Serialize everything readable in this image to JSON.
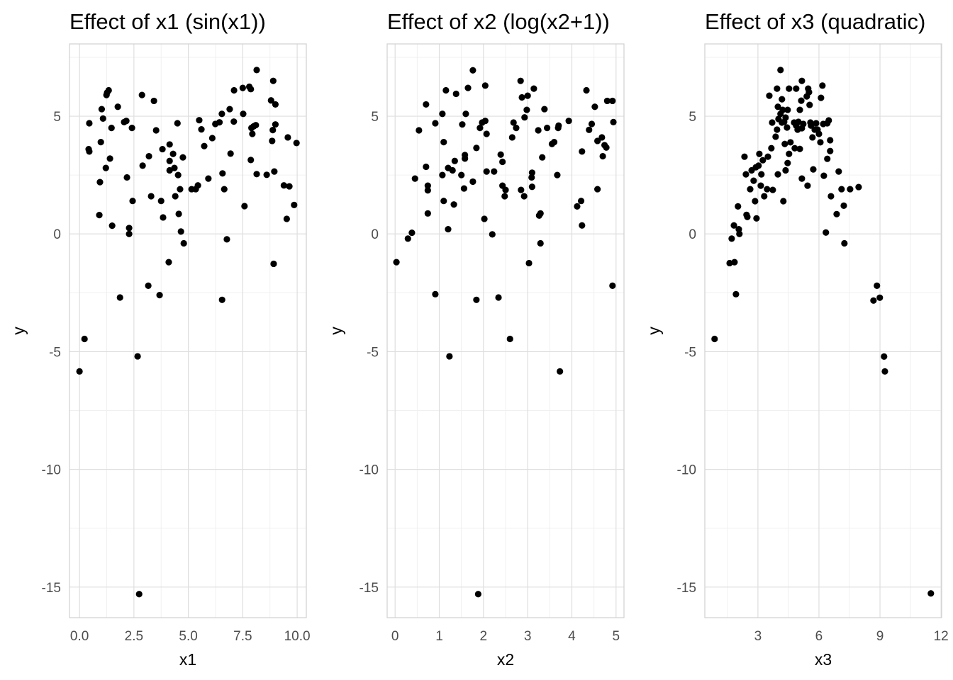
{
  "chart_data": [
    {
      "type": "scatter",
      "title": "Effect of x1 (sin(x1))",
      "xlabel": "x1",
      "ylabel": "y",
      "xlim": [
        -0.46,
        10.42
      ],
      "ylim": [
        -16.3,
        8.07
      ],
      "xticks": [
        0,
        2.5,
        5,
        7.5,
        10
      ],
      "xtick_labels": [
        "0.0",
        "2.5",
        "5.0",
        "7.5",
        "10.0"
      ],
      "yticks": [
        5,
        0,
        -5,
        -10,
        -15
      ],
      "ytick_labels": [
        "5",
        "0",
        "-5",
        "-10",
        "-15"
      ],
      "xminor": [
        1.25,
        3.75,
        6.25,
        8.75
      ],
      "yminor": [
        7.5,
        2.5,
        -2.5,
        -7.5,
        -12.5
      ],
      "grid": true,
      "point_color": "#000000",
      "points": [
        [
          0,
          -5.84
        ],
        [
          0.23,
          -4.46
        ],
        [
          0.45,
          4.7
        ],
        [
          0.42,
          3.6
        ],
        [
          0.45,
          3.5
        ],
        [
          0.91,
          0.8
        ],
        [
          0.94,
          2.2
        ],
        [
          0.98,
          3.9
        ],
        [
          1.02,
          5.3
        ],
        [
          1.08,
          4.9
        ],
        [
          1.21,
          2.8
        ],
        [
          1.24,
          5.9
        ],
        [
          1.27,
          6.0
        ],
        [
          1.34,
          6.1
        ],
        [
          1.4,
          3.2
        ],
        [
          1.47,
          4.5
        ],
        [
          1.5,
          0.35
        ],
        [
          1.76,
          5.4
        ],
        [
          1.86,
          -2.7
        ],
        [
          2.05,
          4.75
        ],
        [
          2.15,
          4.8
        ],
        [
          2.18,
          2.4
        ],
        [
          2.28,
          0.25
        ],
        [
          2.28,
          0
        ],
        [
          2.41,
          4.5
        ],
        [
          2.44,
          1.4
        ],
        [
          2.67,
          -5.2
        ],
        [
          2.74,
          -15.3
        ],
        [
          2.87,
          5.9
        ],
        [
          2.9,
          2.9
        ],
        [
          3.16,
          -2.2
        ],
        [
          3.19,
          3.3
        ],
        [
          3.29,
          1.6
        ],
        [
          3.42,
          5.65
        ],
        [
          3.52,
          4.4
        ],
        [
          3.68,
          -2.6
        ],
        [
          3.75,
          1.4
        ],
        [
          3.81,
          3.6
        ],
        [
          3.84,
          0.7
        ],
        [
          4.1,
          -1.2
        ],
        [
          4.14,
          3.8
        ],
        [
          4.14,
          3.1
        ],
        [
          4.14,
          2.7
        ],
        [
          4.3,
          3.4
        ],
        [
          4.36,
          2.8
        ],
        [
          4.4,
          1.6
        ],
        [
          4.5,
          4.7
        ],
        [
          4.53,
          2.5
        ],
        [
          4.56,
          0.85
        ],
        [
          4.62,
          1.9
        ],
        [
          4.66,
          0.1
        ],
        [
          4.79,
          -0.4
        ],
        [
          4.75,
          3.25
        ],
        [
          5.15,
          1.9
        ],
        [
          5.34,
          1.9
        ],
        [
          5.44,
          2.06
        ],
        [
          5.5,
          4.83
        ],
        [
          5.6,
          4.44
        ],
        [
          5.73,
          3.73
        ],
        [
          5.92,
          2.35
        ],
        [
          6.1,
          4.07
        ],
        [
          6.24,
          4.67
        ],
        [
          6.43,
          4.74
        ],
        [
          6.54,
          5.1
        ],
        [
          6.55,
          -2.8
        ],
        [
          6.57,
          2.57
        ],
        [
          6.65,
          1.9
        ],
        [
          6.77,
          -0.23
        ],
        [
          6.9,
          5.3
        ],
        [
          6.94,
          3.41
        ],
        [
          7.09,
          4.77
        ],
        [
          7.1,
          6.1
        ],
        [
          7.52,
          5.1
        ],
        [
          7.5,
          6.2
        ],
        [
          7.58,
          1.18
        ],
        [
          7.8,
          6.25
        ],
        [
          7.87,
          6.15
        ],
        [
          7.87,
          3.14
        ],
        [
          7.9,
          4.5
        ],
        [
          7.94,
          4.25
        ],
        [
          8.0,
          4.57
        ],
        [
          8.1,
          4.62
        ],
        [
          8.14,
          6.96
        ],
        [
          8.14,
          2.54
        ],
        [
          8.6,
          2.51
        ],
        [
          8.8,
          5.67
        ],
        [
          8.85,
          3.95
        ],
        [
          8.88,
          4.41
        ],
        [
          8.9,
          6.5
        ],
        [
          8.92,
          -1.27
        ],
        [
          8.95,
          2.65
        ],
        [
          9.0,
          5.5
        ],
        [
          9.0,
          4.65
        ],
        [
          9.39,
          2.06
        ],
        [
          9.52,
          0.64
        ],
        [
          9.57,
          4.1
        ],
        [
          9.64,
          2.02
        ],
        [
          9.86,
          1.23
        ],
        [
          9.97,
          3.86
        ]
      ]
    },
    {
      "type": "scatter",
      "title": "Effect of x2 (log(x2+1))",
      "xlabel": "x2",
      "ylabel": "y",
      "xlim": [
        -0.18,
        5.18
      ],
      "ylim": [
        -16.3,
        8.07
      ],
      "xticks": [
        0,
        1,
        2,
        3,
        4,
        5
      ],
      "xtick_labels": [
        "0",
        "1",
        "2",
        "3",
        "4",
        "5"
      ],
      "yticks": [
        5,
        0,
        -5,
        -10,
        -15
      ],
      "ytick_labels": [
        "5",
        "0",
        "-5",
        "-10",
        "-15"
      ],
      "xminor": [
        0.5,
        1.5,
        2.5,
        3.5,
        4.5
      ],
      "yminor": [
        7.5,
        2.5,
        -2.5,
        -7.5,
        -12.5
      ],
      "grid": true,
      "point_color": "#000000",
      "points": [
        [
          0.03,
          -1.2
        ],
        [
          0.29,
          -0.2
        ],
        [
          0.38,
          0.05
        ],
        [
          0.45,
          2.35
        ],
        [
          0.54,
          4.4
        ],
        [
          0.7,
          5.5
        ],
        [
          0.7,
          2.85
        ],
        [
          0.74,
          2.05
        ],
        [
          0.74,
          1.85
        ],
        [
          0.74,
          0.87
        ],
        [
          0.91,
          -2.56
        ],
        [
          0.91,
          4.7
        ],
        [
          1.07,
          5.1
        ],
        [
          1.07,
          2.5
        ],
        [
          1.1,
          3.9
        ],
        [
          1.1,
          1.4
        ],
        [
          1.15,
          6.1
        ],
        [
          1.2,
          2.8
        ],
        [
          1.2,
          0.2
        ],
        [
          1.23,
          -5.2
        ],
        [
          1.3,
          2.7
        ],
        [
          1.33,
          1.25
        ],
        [
          1.35,
          3.1
        ],
        [
          1.38,
          5.95
        ],
        [
          1.5,
          2.5
        ],
        [
          1.52,
          4.65
        ],
        [
          1.56,
          1.93
        ],
        [
          1.58,
          3.35
        ],
        [
          1.6,
          5.1
        ],
        [
          1.58,
          3.2
        ],
        [
          1.65,
          6.2
        ],
        [
          1.76,
          2.22
        ],
        [
          1.76,
          6.95
        ],
        [
          1.84,
          3.65
        ],
        [
          1.84,
          -2.8
        ],
        [
          1.88,
          -15.3
        ],
        [
          1.92,
          4.5
        ],
        [
          1.97,
          4.73
        ],
        [
          2.04,
          6.3
        ],
        [
          2.04,
          4.8
        ],
        [
          2.02,
          0.64
        ],
        [
          2.07,
          2.65
        ],
        [
          2.07,
          4.25
        ],
        [
          2.2,
          -0.02
        ],
        [
          2.24,
          2.65
        ],
        [
          2.34,
          -2.7
        ],
        [
          2.39,
          3.37
        ],
        [
          2.43,
          3.06
        ],
        [
          2.43,
          2.05
        ],
        [
          2.5,
          1.87
        ],
        [
          2.48,
          1.6
        ],
        [
          2.6,
          -4.46
        ],
        [
          2.65,
          4.1
        ],
        [
          2.68,
          4.73
        ],
        [
          2.74,
          4.5
        ],
        [
          2.84,
          6.5
        ],
        [
          2.85,
          1.87
        ],
        [
          2.87,
          5.8
        ],
        [
          2.93,
          4.95
        ],
        [
          2.92,
          1.6
        ],
        [
          2.98,
          5.27
        ],
        [
          3.0,
          5.87
        ],
        [
          3.03,
          -1.24
        ],
        [
          3.09,
          2.4
        ],
        [
          3.1,
          2.6
        ],
        [
          3.1,
          2.0
        ],
        [
          3.14,
          6.17
        ],
        [
          3.24,
          4.4
        ],
        [
          3.26,
          0.78
        ],
        [
          3.29,
          0.87
        ],
        [
          3.29,
          -0.4
        ],
        [
          3.33,
          3.25
        ],
        [
          3.38,
          5.3
        ],
        [
          3.44,
          4.5
        ],
        [
          3.55,
          3.82
        ],
        [
          3.6,
          3.9
        ],
        [
          3.67,
          2.5
        ],
        [
          3.69,
          4.5
        ],
        [
          3.7,
          4.6
        ],
        [
          3.73,
          -5.84
        ],
        [
          3.93,
          4.8
        ],
        [
          4.12,
          1.17
        ],
        [
          4.21,
          1.4
        ],
        [
          4.23,
          3.5
        ],
        [
          4.23,
          0.36
        ],
        [
          4.33,
          6.1
        ],
        [
          4.39,
          4.42
        ],
        [
          4.45,
          4.67
        ],
        [
          4.52,
          5.4
        ],
        [
          4.58,
          1.9
        ],
        [
          4.58,
          3.95
        ],
        [
          4.68,
          4.1
        ],
        [
          4.7,
          3.3
        ],
        [
          4.74,
          3.77
        ],
        [
          4.78,
          3.67
        ],
        [
          4.8,
          5.65
        ],
        [
          4.92,
          5.65
        ],
        [
          4.92,
          -2.2
        ],
        [
          4.94,
          4.75
        ]
      ]
    },
    {
      "type": "scatter",
      "title": "Effect of x3 (quadratic)",
      "xlabel": "x3",
      "ylabel": "y",
      "xlim": [
        0.39,
        12.03
      ],
      "ylim": [
        -16.3,
        8.07
      ],
      "xticks": [
        3,
        6,
        9,
        12
      ],
      "xtick_labels": [
        "3",
        "6",
        "9",
        "12"
      ],
      "yticks": [
        5,
        0,
        -5,
        -10,
        -15
      ],
      "ytick_labels": [
        "5",
        "0",
        "-5",
        "-10",
        "-15"
      ],
      "xminor": [
        1.5,
        4.5,
        7.5,
        10.5
      ],
      "yminor": [
        7.5,
        2.5,
        -2.5,
        -7.5,
        -12.5
      ],
      "grid": true,
      "point_color": "#000000",
      "points": [
        [
          0.87,
          -4.46
        ],
        [
          1.61,
          -1.24
        ],
        [
          1.71,
          -0.2
        ],
        [
          1.82,
          0.36
        ],
        [
          1.85,
          -1.2
        ],
        [
          1.92,
          -2.56
        ],
        [
          2.02,
          1.17
        ],
        [
          2.06,
          0.2
        ],
        [
          2.09,
          0
        ],
        [
          2.34,
          3.28
        ],
        [
          2.41,
          2.53
        ],
        [
          2.44,
          0.81
        ],
        [
          2.48,
          0.72
        ],
        [
          2.62,
          1.9
        ],
        [
          2.69,
          2.7
        ],
        [
          2.79,
          2.26
        ],
        [
          2.86,
          1.39
        ],
        [
          2.93,
          0.66
        ],
        [
          2.9,
          2.83
        ],
        [
          3.03,
          2.9
        ],
        [
          3.07,
          3.4
        ],
        [
          3.14,
          2.05
        ],
        [
          3.17,
          2.53
        ],
        [
          3.24,
          3.13
        ],
        [
          3.31,
          1.6
        ],
        [
          3.45,
          1.9
        ],
        [
          3.49,
          3.28
        ],
        [
          3.56,
          5.87
        ],
        [
          3.66,
          3.64
        ],
        [
          3.7,
          4.73
        ],
        [
          3.73,
          1.87
        ],
        [
          3.87,
          4.13
        ],
        [
          3.94,
          4.43
        ],
        [
          3.94,
          6.17
        ],
        [
          3.98,
          5.4
        ],
        [
          3.98,
          2.53
        ],
        [
          4.01,
          4.88
        ],
        [
          4.11,
          6.96
        ],
        [
          4.11,
          5.1
        ],
        [
          4.18,
          4.73
        ],
        [
          4.18,
          5.72
        ],
        [
          4.22,
          5.27
        ],
        [
          4.25,
          1.39
        ],
        [
          4.29,
          4.76
        ],
        [
          4.32,
          3.82
        ],
        [
          4.36,
          4.94
        ],
        [
          4.36,
          2.7
        ],
        [
          4.43,
          4.52
        ],
        [
          4.46,
          5.27
        ],
        [
          4.46,
          3.01
        ],
        [
          4.53,
          6.17
        ],
        [
          4.53,
          3.4
        ],
        [
          4.6,
          3.89
        ],
        [
          4.78,
          4.73
        ],
        [
          4.81,
          3.64
        ],
        [
          4.88,
          6.17
        ],
        [
          4.88,
          4.6
        ],
        [
          4.95,
          4.43
        ],
        [
          4.99,
          4.76
        ],
        [
          5.06,
          3.61
        ],
        [
          5.06,
          5.27
        ],
        [
          5.13,
          5.66
        ],
        [
          5.16,
          6.5
        ],
        [
          5.16,
          4.49
        ],
        [
          5.16,
          2.35
        ],
        [
          5.23,
          4.67
        ],
        [
          5.4,
          5.84
        ],
        [
          5.44,
          2.05
        ],
        [
          5.47,
          6.17
        ],
        [
          5.51,
          6.02
        ],
        [
          5.54,
          5.48
        ],
        [
          5.58,
          4.73
        ],
        [
          5.61,
          4.6
        ],
        [
          5.68,
          4.1
        ],
        [
          5.72,
          2.74
        ],
        [
          5.79,
          4.43
        ],
        [
          5.86,
          4.7
        ],
        [
          5.93,
          4.43
        ],
        [
          6.0,
          4.25
        ],
        [
          6.07,
          3.89
        ],
        [
          6.1,
          5.78
        ],
        [
          6.17,
          6.3
        ],
        [
          6.21,
          4.67
        ],
        [
          6.24,
          2.47
        ],
        [
          6.34,
          0.06
        ],
        [
          6.41,
          4.7
        ],
        [
          6.41,
          3.19
        ],
        [
          6.48,
          4.82
        ],
        [
          6.55,
          3.98
        ],
        [
          6.55,
          3.52
        ],
        [
          6.59,
          1.6
        ],
        [
          6.87,
          0.84
        ],
        [
          6.97,
          2.65
        ],
        [
          7.11,
          1.9
        ],
        [
          7.22,
          1.2
        ],
        [
          7.25,
          -0.4
        ],
        [
          7.53,
          1.9
        ],
        [
          7.95,
          1.99
        ],
        [
          8.68,
          -2.83
        ],
        [
          8.85,
          -2.2
        ],
        [
          8.99,
          -2.71
        ],
        [
          9.2,
          -5.21
        ],
        [
          9.24,
          -5.84
        ],
        [
          11.5,
          -15.27
        ]
      ]
    }
  ]
}
